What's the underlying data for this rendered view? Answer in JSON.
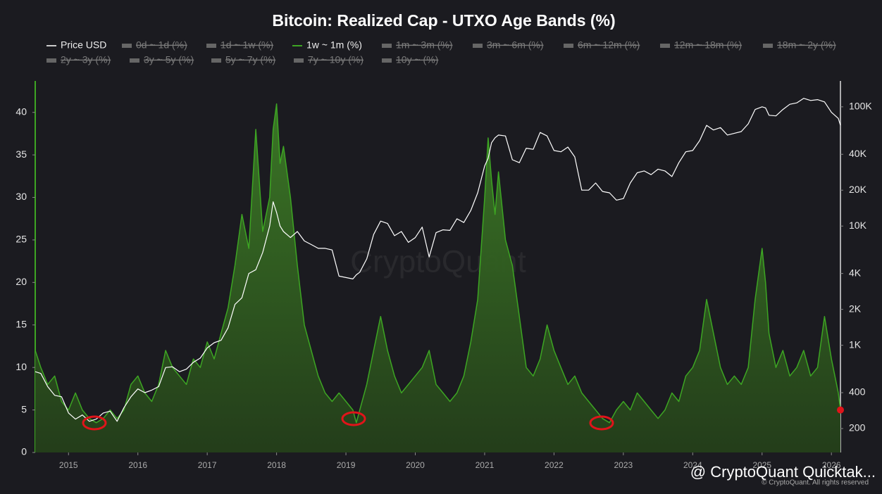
{
  "chart_data": {
    "type": "area",
    "title": "Bitcoin: Realized Cap - UTXO Age Bands (%)",
    "watermark": "CryptoQuant",
    "credit": "@ CryptoQuant Quicktak...",
    "copyright": "© CryptoQuant. All rights reserved",
    "x": [
      2014.52,
      2014.6,
      2014.7,
      2014.8,
      2014.9,
      2015.0,
      2015.1,
      2015.2,
      2015.3,
      2015.4,
      2015.5,
      2015.6,
      2015.7,
      2015.8,
      2015.9,
      2016.0,
      2016.1,
      2016.2,
      2016.3,
      2016.4,
      2016.5,
      2016.6,
      2016.7,
      2016.8,
      2016.9,
      2017.0,
      2017.1,
      2017.2,
      2017.3,
      2017.4,
      2017.5,
      2017.6,
      2017.7,
      2017.8,
      2017.9,
      2017.95,
      2018.0,
      2018.05,
      2018.1,
      2018.2,
      2018.3,
      2018.4,
      2018.5,
      2018.6,
      2018.7,
      2018.8,
      2018.9,
      2019.0,
      2019.1,
      2019.15,
      2019.2,
      2019.3,
      2019.4,
      2019.5,
      2019.6,
      2019.7,
      2019.8,
      2019.9,
      2020.0,
      2020.1,
      2020.2,
      2020.3,
      2020.4,
      2020.5,
      2020.6,
      2020.7,
      2020.8,
      2020.9,
      2021.0,
      2021.05,
      2021.1,
      2021.15,
      2021.2,
      2021.3,
      2021.4,
      2021.5,
      2021.6,
      2021.7,
      2021.8,
      2021.9,
      2022.0,
      2022.1,
      2022.2,
      2022.3,
      2022.4,
      2022.5,
      2022.6,
      2022.7,
      2022.8,
      2022.9,
      2023.0,
      2023.1,
      2023.2,
      2023.3,
      2023.4,
      2023.5,
      2023.6,
      2023.7,
      2023.8,
      2023.9,
      2024.0,
      2024.1,
      2024.2,
      2024.3,
      2024.4,
      2024.5,
      2024.6,
      2024.7,
      2024.8,
      2024.9,
      2025.0,
      2025.05,
      2025.1,
      2025.2,
      2025.3,
      2025.4,
      2025.5,
      2025.6,
      2025.7,
      2025.8,
      2025.9,
      2026.0,
      2026.1,
      2026.13
    ],
    "series": [
      {
        "name": "Price USD",
        "color": "#ffffff",
        "axis": "y2",
        "visible": true,
        "values": [
          600,
          580,
          450,
          380,
          370,
          270,
          240,
          260,
          230,
          240,
          270,
          280,
          230,
          300,
          370,
          430,
          400,
          420,
          450,
          650,
          660,
          600,
          630,
          720,
          780,
          950,
          1050,
          1100,
          1400,
          2200,
          2500,
          4000,
          4300,
          6000,
          10000,
          16000,
          13000,
          10000,
          9000,
          8000,
          9000,
          7500,
          7000,
          6500,
          6500,
          6300,
          3800,
          3700,
          3600,
          3900,
          4100,
          5300,
          8500,
          11000,
          10500,
          8300,
          9000,
          7300,
          8000,
          9800,
          5500,
          8800,
          9300,
          9200,
          11500,
          10700,
          13500,
          19000,
          32000,
          37000,
          50000,
          55000,
          58000,
          57000,
          36000,
          34000,
          45000,
          44000,
          61000,
          57000,
          43000,
          42000,
          46000,
          38000,
          20000,
          20000,
          23000,
          19500,
          19000,
          16500,
          17000,
          23000,
          28000,
          29000,
          27000,
          30000,
          29000,
          26000,
          34000,
          42000,
          43000,
          52000,
          70000,
          64000,
          67000,
          58000,
          60000,
          62000,
          72000,
          95000,
          100000,
          98000,
          85000,
          84000,
          95000,
          105000,
          108000,
          118000,
          113000,
          115000,
          110000,
          90000,
          80000,
          70000
        ]
      },
      {
        "name": "0d ~ 1d (%)",
        "color": "#777777",
        "visible": false
      },
      {
        "name": "1d ~ 1w (%)",
        "color": "#777777",
        "visible": false
      },
      {
        "name": "1w ~ 1m (%)",
        "color": "#3da523",
        "visible": true,
        "values": [
          12,
          10,
          8,
          9,
          6,
          5,
          7,
          5,
          4,
          3.5,
          4,
          5,
          4,
          5,
          8,
          9,
          7,
          6,
          8,
          12,
          10,
          9,
          8,
          11,
          10,
          13,
          11,
          14,
          17,
          22,
          28,
          24,
          38,
          26,
          30,
          38,
          41,
          34,
          36,
          30,
          22,
          15,
          12,
          9,
          7,
          6,
          7,
          6,
          5,
          3.5,
          5,
          8,
          12,
          16,
          12,
          9,
          7,
          8,
          9,
          10,
          12,
          8,
          7,
          6,
          7,
          9,
          13,
          18,
          30,
          37,
          32,
          28,
          33,
          25,
          22,
          16,
          10,
          9,
          11,
          15,
          12,
          10,
          8,
          9,
          7,
          6,
          5,
          4,
          3.5,
          5,
          6,
          5,
          7,
          6,
          5,
          4,
          5,
          7,
          6,
          9,
          10,
          12,
          18,
          14,
          10,
          8,
          9,
          8,
          10,
          18,
          24,
          20,
          14,
          10,
          12,
          9,
          10,
          12,
          9,
          10,
          16,
          11,
          7,
          5
        ]
      },
      {
        "name": "1m ~ 3m (%)",
        "color": "#777777",
        "visible": false
      },
      {
        "name": "3m ~ 6m (%)",
        "color": "#777777",
        "visible": false
      },
      {
        "name": "6m ~ 12m (%)",
        "color": "#777777",
        "visible": false
      },
      {
        "name": "12m ~ 18m (%)",
        "color": "#777777",
        "visible": false
      },
      {
        "name": "18m ~ 2y (%)",
        "color": "#777777",
        "visible": false
      },
      {
        "name": "2y ~ 3y (%)",
        "color": "#777777",
        "visible": false
      },
      {
        "name": "3y ~ 5y (%)",
        "color": "#777777",
        "visible": false
      },
      {
        "name": "5y ~ 7y (%)",
        "color": "#777777",
        "visible": false
      },
      {
        "name": "7y ~ 10y (%)",
        "color": "#777777",
        "visible": false
      },
      {
        "name": "10y ~ (%)",
        "color": "#777777",
        "visible": false
      }
    ],
    "xlim": [
      2014.52,
      2026.13
    ],
    "xticks": [
      2015,
      2016,
      2017,
      2018,
      2019,
      2020,
      2021,
      2022,
      2023,
      2024,
      2025,
      2026
    ],
    "ylim": [
      0,
      43.7
    ],
    "yticks": [
      0,
      5,
      10,
      15,
      20,
      25,
      30,
      35,
      40
    ],
    "y2lim": [
      126,
      165000
    ],
    "y2_log": true,
    "y2ticks": [
      {
        "value": 100000,
        "label": "100K"
      },
      {
        "value": 40000,
        "label": "40K"
      },
      {
        "value": 20000,
        "label": "20K"
      },
      {
        "value": 10000,
        "label": "10K"
      },
      {
        "value": 4000,
        "label": "4K"
      },
      {
        "value": 2000,
        "label": "2K"
      },
      {
        "value": 1000,
        "label": "1K"
      },
      400,
      200
    ]
  }
}
